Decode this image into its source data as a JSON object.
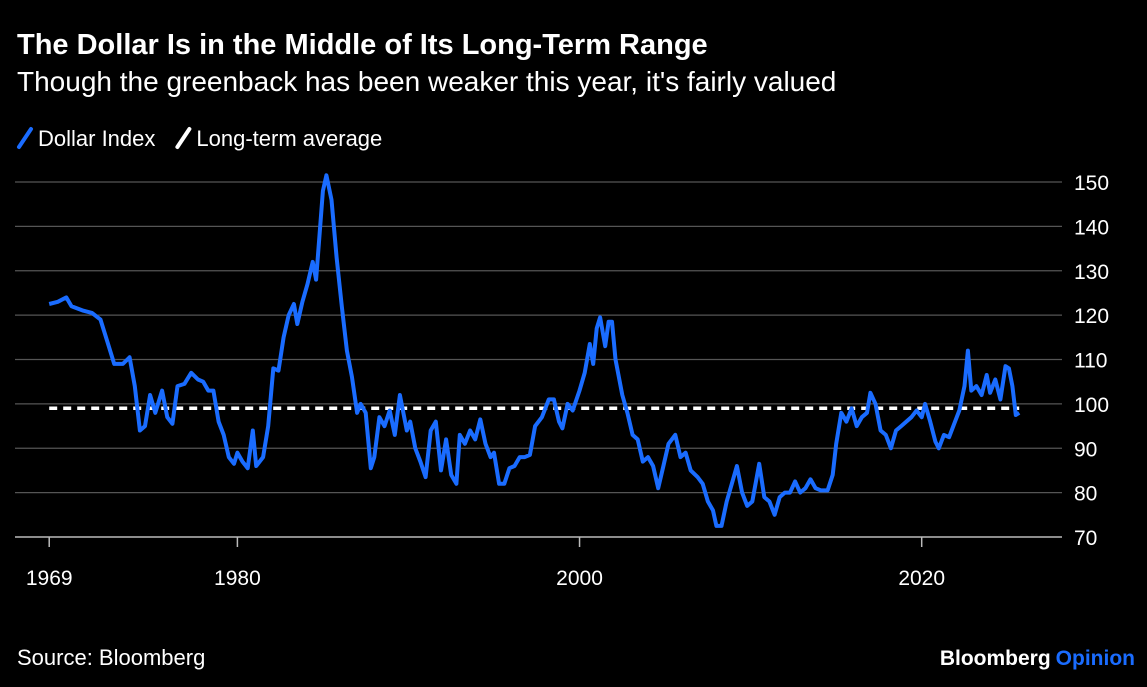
{
  "chart_data": {
    "type": "line",
    "title": "The Dollar Is in the Middle of Its Long-Term Range",
    "subtitle": "Though the greenback has been weaker this year, it's fairly valued",
    "source": "Source: Bloomberg",
    "brand": "Bloomberg",
    "brand_suffix": "Opinion",
    "series": [
      {
        "name": "Dollar Index",
        "color": "#1a6cff",
        "x": [
          1969.0,
          1969.5,
          1970.0,
          1970.3,
          1971.0,
          1971.5,
          1972.0,
          1972.4,
          1972.8,
          1973.3,
          1973.7,
          1974.0,
          1974.3,
          1974.6,
          1974.9,
          1975.2,
          1975.6,
          1975.9,
          1976.2,
          1976.5,
          1976.9,
          1977.3,
          1977.7,
          1978.0,
          1978.3,
          1978.6,
          1978.9,
          1979.2,
          1979.5,
          1979.8,
          1980.0,
          1980.3,
          1980.6,
          1980.9,
          1981.1,
          1981.5,
          1981.8,
          1982.1,
          1982.4,
          1982.7,
          1983.0,
          1983.3,
          1983.5,
          1983.8,
          1984.1,
          1984.4,
          1984.6,
          1984.8,
          1985.0,
          1985.2,
          1985.5,
          1985.8,
          1986.1,
          1986.4,
          1986.7,
          1987.0,
          1987.2,
          1987.5,
          1987.8,
          1988.0,
          1988.3,
          1988.6,
          1988.9,
          1989.2,
          1989.5,
          1989.9,
          1990.1,
          1990.4,
          1990.7,
          1991.0,
          1991.3,
          1991.6,
          1991.9,
          1992.2,
          1992.5,
          1992.8,
          1993.0,
          1993.3,
          1993.6,
          1993.9,
          1994.2,
          1994.5,
          1994.8,
          1995.0,
          1995.3,
          1995.6,
          1995.9,
          1996.2,
          1996.5,
          1996.8,
          1997.1,
          1997.4,
          1997.8,
          1998.2,
          1998.5,
          1998.8,
          1999.0,
          1999.3,
          1999.6,
          2000.0,
          2000.3,
          2000.6,
          2000.8,
          2001.0,
          2001.2,
          2001.5,
          2001.7,
          2001.9,
          2002.1,
          2002.5,
          2002.8,
          2003.1,
          2003.4,
          2003.7,
          2004.0,
          2004.3,
          2004.6,
          2004.9,
          2005.2,
          2005.6,
          2005.9,
          2006.2,
          2006.5,
          2006.9,
          2007.2,
          2007.5,
          2007.8,
          2008.0,
          2008.3,
          2008.6,
          2008.9,
          2009.2,
          2009.5,
          2009.8,
          2010.1,
          2010.5,
          2010.8,
          2011.1,
          2011.4,
          2011.7,
          2012.0,
          2012.3,
          2012.6,
          2012.9,
          2013.2,
          2013.5,
          2013.8,
          2014.1,
          2014.5,
          2014.8,
          2015.0,
          2015.3,
          2015.6,
          2015.9,
          2016.2,
          2016.5,
          2016.8,
          2017.0,
          2017.3,
          2017.6,
          2017.9,
          2018.2,
          2018.5,
          2018.8,
          2019.1,
          2019.4,
          2019.7,
          2020.0,
          2020.2,
          2020.5,
          2020.8,
          2021.0,
          2021.3,
          2021.6,
          2021.9,
          2022.2,
          2022.5,
          2022.7,
          2022.9,
          2023.2,
          2023.5,
          2023.8,
          2024.0,
          2024.3,
          2024.6,
          2024.9,
          2025.1,
          2025.3,
          2025.5,
          2025.7
        ],
        "values": [
          122.5,
          123,
          124,
          122,
          121,
          120.5,
          119,
          114,
          109,
          109,
          110.5,
          104,
          94,
          95,
          102,
          98,
          103,
          97,
          95.5,
          104,
          104.5,
          107,
          105.5,
          105,
          103,
          103,
          96,
          93,
          88,
          86.5,
          89,
          87,
          85.5,
          94,
          86,
          88,
          95,
          108,
          107.5,
          115,
          120,
          122.5,
          118,
          123,
          127,
          132,
          128,
          138,
          148,
          151.5,
          146,
          133,
          122,
          112,
          106,
          98,
          100,
          98,
          85.5,
          88,
          97,
          95,
          98.5,
          93,
          102,
          94,
          96,
          90,
          87,
          83.5,
          94,
          96,
          85,
          92,
          84,
          82,
          93,
          91,
          94,
          92,
          96.5,
          91,
          88,
          89,
          82,
          82,
          85.5,
          86,
          88,
          88,
          88.5,
          95,
          97,
          101,
          101,
          96,
          94.5,
          100,
          98.5,
          103,
          107,
          113.5,
          109,
          117,
          119.5,
          113,
          118.5,
          118.5,
          110,
          102,
          98,
          93,
          92,
          87,
          88,
          86,
          81,
          86,
          91,
          93,
          88,
          89,
          85,
          83.5,
          82,
          78,
          76,
          72.5,
          72.5,
          78,
          82,
          86,
          80,
          77,
          78,
          86.5,
          79,
          78,
          75,
          79,
          80,
          80,
          82.5,
          80,
          81,
          83,
          81,
          80.5,
          80.5,
          84,
          91,
          98,
          96,
          99,
          95,
          97,
          98,
          102.5,
          100,
          94,
          93,
          90,
          94,
          95,
          96,
          97,
          98.5,
          97,
          100,
          96,
          91.5,
          90,
          93,
          92.5,
          95.5,
          98.5,
          104,
          112,
          103,
          104,
          102,
          106.5,
          102.5,
          105.5,
          101,
          108.5,
          108,
          104,
          97.5,
          98
        ]
      },
      {
        "name": "Long-term average",
        "color": "#ffffff",
        "dashed": true,
        "x": [
          1969.0,
          2025.7
        ],
        "values": [
          99,
          99
        ]
      }
    ],
    "xlim": [
      1967,
      2027.5
    ],
    "xticks": [
      1969,
      1980,
      2000,
      2020
    ],
    "ylim": [
      70,
      150
    ],
    "yticks": [
      70,
      80,
      90,
      100,
      110,
      120,
      130,
      140,
      150
    ],
    "y_axis_side": "right",
    "grid": true
  }
}
